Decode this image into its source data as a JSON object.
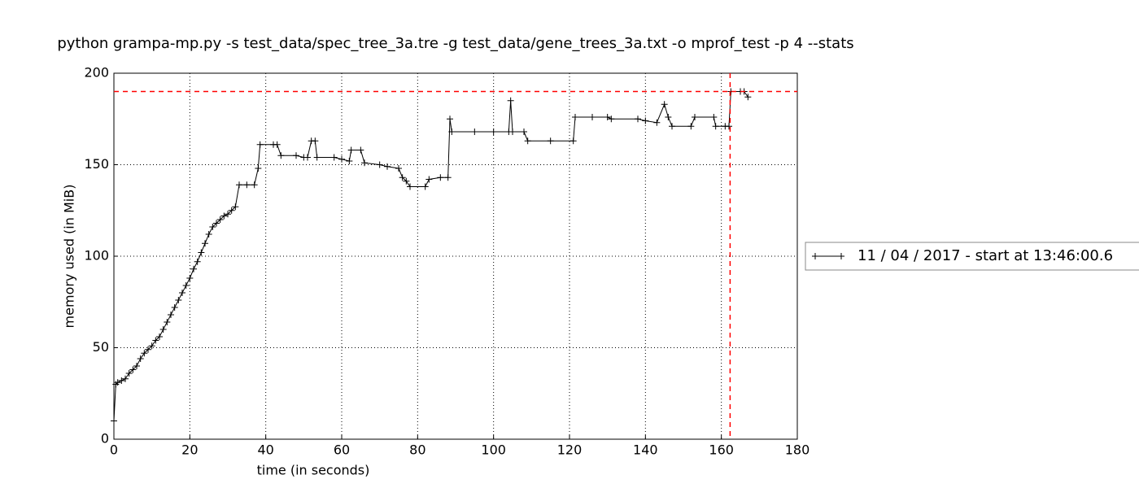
{
  "chart_data": {
    "type": "line",
    "title": "python grampa-mp.py -s test_data/spec_tree_3a.tre -g test_data/gene_trees_3a.txt -o mprof_test -p 4 --stats",
    "xlabel": "time (in seconds)",
    "ylabel": "memory used (in MiB)",
    "xlim": [
      0,
      180
    ],
    "ylim": [
      0,
      200
    ],
    "xticks": [
      0,
      20,
      40,
      60,
      80,
      100,
      120,
      140,
      160,
      180
    ],
    "yticks": [
      0,
      50,
      100,
      150,
      200
    ],
    "grid": true,
    "legend": "right",
    "reference_color": "#ff0000",
    "reference_lines": [
      {
        "axis": "y",
        "value": 190
      },
      {
        "axis": "x",
        "value": 162.3
      }
    ],
    "series": [
      {
        "name": "11 / 04 / 2017 - start at 13:46:00.6",
        "color": "#000000",
        "x": [
          0,
          0.5,
          1,
          2,
          3,
          4,
          5,
          6,
          7,
          8,
          9,
          10,
          11,
          12,
          13,
          14,
          15,
          16,
          17,
          18,
          19,
          20,
          21,
          22,
          23,
          24,
          25,
          26,
          27,
          28,
          29,
          30,
          31,
          32,
          33,
          35,
          37,
          38,
          38.5,
          42,
          43,
          44,
          48,
          50,
          51,
          52,
          53,
          53.5,
          58,
          60,
          62,
          62.5,
          65,
          66,
          70,
          72,
          75,
          76,
          77,
          78,
          82,
          83,
          86,
          88,
          88.5,
          89,
          95,
          100,
          104,
          104.5,
          105,
          108,
          109,
          115,
          121,
          121.5,
          126,
          130,
          131,
          138,
          140,
          143,
          145,
          146,
          147,
          152,
          153,
          158,
          158.5,
          161,
          162,
          162.5,
          165,
          166,
          167
        ],
        "values": [
          10,
          30,
          31,
          32,
          33,
          36,
          38,
          40,
          44,
          47,
          49,
          51,
          54,
          56,
          60,
          64,
          68,
          72,
          76,
          80,
          84,
          88,
          93,
          97,
          102,
          107,
          112,
          116,
          118,
          120,
          122,
          123,
          125,
          127,
          139,
          139,
          139,
          148,
          161,
          161,
          161,
          155,
          155,
          154,
          154,
          163,
          163,
          154,
          154,
          153,
          152,
          158,
          158,
          151,
          150,
          149,
          148,
          143,
          141,
          138,
          138,
          142,
          143,
          143,
          175,
          168,
          168,
          168,
          168,
          185,
          168,
          168,
          163,
          163,
          163,
          176,
          176,
          176,
          175,
          175,
          174,
          173,
          183,
          176,
          171,
          171,
          176,
          176,
          171,
          171,
          171,
          190,
          190,
          190,
          187
        ]
      }
    ]
  }
}
